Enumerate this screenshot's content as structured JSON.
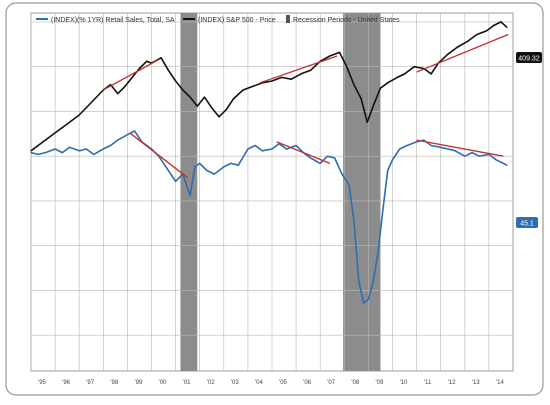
{
  "colors": {
    "sp500": "#111111",
    "retail": "#2f6db0",
    "trend": "#c0302a",
    "recession": "#8c8c8c",
    "grid": "#b8b8b8",
    "frame": "#9a9a9a",
    "badge_sp500": "#111111",
    "badge_retail": "#2f6db0"
  },
  "legend": {
    "retail_label": "(INDEX)(% 1YR) Retail Sales, Total, SA",
    "sp500_label": "(INDEX) S&P 500 - Price",
    "recession_label": "Recession Periods - United States"
  },
  "badges": {
    "sp500_value": "409.32",
    "retail_value": "45.1"
  },
  "chart_data": {
    "type": "line",
    "title": "",
    "xlabel": "",
    "ylabel": "",
    "x_tick_labels": [
      "'95",
      "'96",
      "'97",
      "'98",
      "'99",
      "'00",
      "'01",
      "'02",
      "'03",
      "'04",
      "'05",
      "'06",
      "'07",
      "'08",
      "'09",
      "'10",
      "'11",
      "'12",
      "'13",
      "'14"
    ],
    "x_range": [
      1995.0,
      2015.0
    ],
    "y_range_index": [
      0,
      100
    ],
    "grid": true,
    "legend_position": "top-left",
    "recessions": [
      {
        "start": 2001.2,
        "end": 2001.9
      },
      {
        "start": 2007.95,
        "end": 2009.5
      }
    ],
    "series": [
      {
        "name": "(INDEX) S&P 500 - Price",
        "key": "sp500",
        "x": [
          1995.0,
          1995.5,
          1996.0,
          1996.5,
          1997.0,
          1997.5,
          1998.0,
          1998.3,
          1998.6,
          1998.9,
          1999.2,
          1999.5,
          1999.8,
          2000.0,
          2000.4,
          2000.7,
          2001.0,
          2001.3,
          2001.6,
          2001.9,
          2002.2,
          2002.5,
          2002.8,
          2003.1,
          2003.4,
          2003.8,
          2004.2,
          2004.6,
          2005.0,
          2005.4,
          2005.8,
          2006.2,
          2006.6,
          2007.0,
          2007.4,
          2007.8,
          2008.1,
          2008.4,
          2008.7,
          2008.95,
          2009.2,
          2009.5,
          2009.8,
          2010.2,
          2010.5,
          2010.9,
          2011.3,
          2011.6,
          2011.9,
          2012.3,
          2012.7,
          2013.1,
          2013.5,
          2013.9,
          2014.2,
          2014.5,
          2014.75
        ],
        "values": [
          61.5,
          64,
          66.5,
          69,
          71.5,
          75,
          78.5,
          80,
          77.5,
          79.5,
          82,
          84.5,
          86.5,
          86,
          87.5,
          84,
          81,
          78.5,
          76.5,
          74,
          76.5,
          73.5,
          71,
          73,
          76,
          78.5,
          79.5,
          80.5,
          81,
          82,
          81.5,
          83,
          84,
          86.5,
          88,
          89,
          85,
          80,
          76,
          69.5,
          74,
          79,
          80.5,
          82,
          83,
          85,
          84.5,
          83,
          86,
          88.5,
          90.5,
          92,
          94,
          95,
          96.5,
          97.5,
          96
        ]
      },
      {
        "name": "(INDEX)(% 1YR) Retail Sales, Total, SA",
        "key": "retail",
        "x": [
          1995.0,
          1995.3,
          1995.6,
          1996.0,
          1996.3,
          1996.6,
          1997.0,
          1997.3,
          1997.6,
          1998.0,
          1998.3,
          1998.6,
          1999.0,
          1999.3,
          1999.6,
          2000.0,
          2000.3,
          2000.6,
          2001.0,
          2001.3,
          2001.6,
          2001.8,
          2002.0,
          2002.3,
          2002.6,
          2003.0,
          2003.3,
          2003.6,
          2004.0,
          2004.3,
          2004.6,
          2005.0,
          2005.3,
          2005.6,
          2006.0,
          2006.3,
          2006.6,
          2007.0,
          2007.3,
          2007.6,
          2007.9,
          2008.2,
          2008.4,
          2008.6,
          2008.8,
          2009.0,
          2009.2,
          2009.4,
          2009.6,
          2009.8,
          2010.0,
          2010.3,
          2010.6,
          2011.0,
          2011.3,
          2011.6,
          2012.0,
          2012.3,
          2012.6,
          2013.0,
          2013.3,
          2013.6,
          2014.0,
          2014.3,
          2014.6,
          2014.75
        ],
        "values": [
          61,
          60.5,
          61,
          62,
          61,
          62.5,
          61.5,
          62,
          60.5,
          62,
          63,
          64.5,
          66,
          67,
          64,
          62,
          60,
          57,
          53,
          55,
          49,
          57,
          58,
          56,
          55,
          57,
          58,
          57.5,
          62,
          63,
          61.5,
          62,
          63.5,
          62,
          63,
          61,
          59.5,
          58,
          60,
          59.5,
          55,
          52,
          42,
          25,
          19,
          20,
          25,
          33,
          45,
          56,
          59,
          62,
          63,
          64,
          64.5,
          63,
          62.5,
          62,
          61.5,
          60,
          61,
          60,
          60.5,
          59,
          58,
          57.5
        ]
      }
    ],
    "trendlines": [
      {
        "series": "sp500",
        "x": [
          1998.0,
          2000.3
        ],
        "values": [
          78.5,
          87
        ]
      },
      {
        "series": "sp500",
        "x": [
          2004.5,
          2007.7
        ],
        "values": [
          80.5,
          88
        ]
      },
      {
        "series": "sp500",
        "x": [
          2011.0,
          2014.8
        ],
        "values": [
          83.5,
          94
        ]
      },
      {
        "series": "retail",
        "x": [
          1999.1,
          2001.5
        ],
        "values": [
          66.5,
          54
        ]
      },
      {
        "series": "retail",
        "x": [
          2005.2,
          2007.4
        ],
        "values": [
          64,
          58
        ]
      },
      {
        "series": "retail",
        "x": [
          2011.0,
          2014.6
        ],
        "values": [
          64.5,
          60
        ]
      }
    ]
  }
}
